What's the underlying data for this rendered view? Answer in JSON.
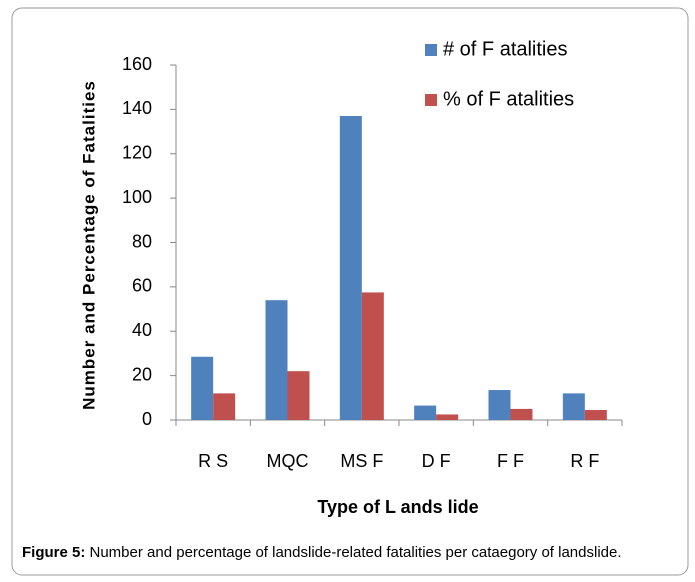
{
  "chart_data": {
    "type": "bar",
    "y_label": "Number and Percentage of  Fatalities",
    "x_label": "Type of L ands lide",
    "categories": [
      "R S",
      "MQC",
      "MS F",
      "D F",
      "F F",
      "R F"
    ],
    "series": [
      {
        "name": "# of F atalities",
        "color": "#4f81bd",
        "values": [
          28.5,
          54,
          137,
          6.5,
          13.5,
          12
        ]
      },
      {
        "name": "%  of F atalities",
        "color": "#c0504d",
        "values": [
          12,
          22,
          57.5,
          2.5,
          5,
          4.5
        ]
      }
    ],
    "ylim": [
      0,
      160
    ],
    "yticks": [
      0,
      20,
      40,
      60,
      80,
      100,
      120,
      140,
      160
    ],
    "grid": false,
    "legend": "top-right"
  },
  "caption": {
    "label": "Figure 5:",
    "text": " Number and percentage of landslide-related fatalities per cataegory of landslide."
  }
}
